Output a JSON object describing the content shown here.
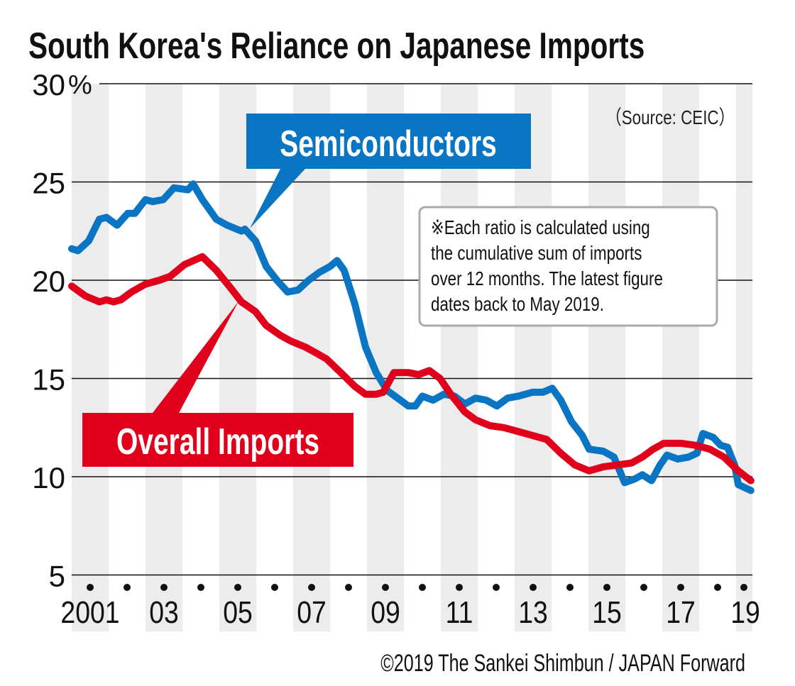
{
  "chart_data": {
    "type": "line",
    "title": "South Korea's Reliance on Japanese Imports",
    "source": "（Source: CEIC）",
    "note_lines": [
      "※Each ratio is calculated using",
      "the cumulative sum of imports",
      "over 12 months. The latest figure",
      "dates back to May 2019."
    ],
    "copyright": "©2019 The Sankei Shimbun / JAPAN Forward",
    "ylabel_unit": "%",
    "ylim": [
      5,
      30
    ],
    "yticks": [
      5,
      10,
      15,
      20,
      25,
      30
    ],
    "ytick_labels": [
      "5",
      "10",
      "15",
      "20",
      "25",
      "30"
    ],
    "xlim": [
      2001,
      2019.42
    ],
    "xtick_labels": [
      {
        "year": 2001,
        "label": "2001"
      },
      {
        "year": 2003,
        "label": "03"
      },
      {
        "year": 2005,
        "label": "05"
      },
      {
        "year": 2007,
        "label": "07"
      },
      {
        "year": 2009,
        "label": "09"
      },
      {
        "year": 2011,
        "label": "11"
      },
      {
        "year": 2013,
        "label": "13"
      },
      {
        "year": 2015,
        "label": "15"
      },
      {
        "year": 2017,
        "label": "17"
      },
      {
        "year": 2019,
        "label": "19"
      }
    ],
    "grid": true,
    "series": [
      {
        "name": "Semiconductors",
        "color": "#0a75c2",
        "x": [
          2001.0,
          2001.17,
          2001.46,
          2001.75,
          2001.94,
          2002.23,
          2002.52,
          2002.71,
          2003.0,
          2003.19,
          2003.48,
          2003.77,
          2004.15,
          2004.29,
          2004.54,
          2004.92,
          2005.21,
          2005.6,
          2005.69,
          2005.98,
          2006.27,
          2006.56,
          2006.85,
          2007.13,
          2007.42,
          2007.71,
          2008.0,
          2008.19,
          2008.38,
          2008.67,
          2008.96,
          2009.25,
          2009.54,
          2009.83,
          2010.12,
          2010.31,
          2010.5,
          2010.79,
          2011.08,
          2011.37,
          2011.65,
          2011.94,
          2012.23,
          2012.52,
          2012.81,
          2013.1,
          2013.48,
          2013.77,
          2014.02,
          2014.25,
          2014.54,
          2014.83,
          2015.02,
          2015.4,
          2015.69,
          2015.98,
          2016.27,
          2016.46,
          2016.71,
          2016.94,
          2017.13,
          2017.42,
          2017.71,
          2017.94,
          2018.1,
          2018.38,
          2018.58,
          2018.77,
          2018.96,
          2019.06,
          2019.4
        ],
        "y": [
          21.6,
          21.5,
          22.0,
          23.1,
          23.2,
          22.8,
          23.4,
          23.4,
          24.1,
          24.0,
          24.1,
          24.7,
          24.6,
          24.9,
          24.1,
          23.1,
          22.8,
          22.5,
          22.6,
          22.0,
          20.7,
          20.0,
          19.4,
          19.5,
          20.0,
          20.4,
          20.7,
          21.0,
          20.5,
          18.8,
          16.6,
          15.3,
          14.4,
          14.0,
          13.6,
          13.6,
          14.1,
          13.9,
          14.2,
          14.1,
          13.7,
          14.0,
          13.9,
          13.6,
          14.0,
          14.1,
          14.3,
          14.3,
          14.5,
          13.9,
          12.8,
          12.1,
          11.4,
          11.3,
          11.0,
          9.7,
          9.9,
          10.1,
          9.8,
          10.6,
          11.1,
          10.9,
          11.0,
          11.2,
          12.2,
          12.0,
          11.6,
          11.5,
          10.6,
          9.6,
          9.3
        ]
      },
      {
        "name": "Overall Imports",
        "color": "#e0001b",
        "x": [
          2001.0,
          2001.37,
          2001.75,
          2001.94,
          2002.13,
          2002.33,
          2002.62,
          2003.0,
          2003.38,
          2003.67,
          2004.06,
          2004.54,
          2004.92,
          2005.31,
          2005.6,
          2005.98,
          2006.27,
          2006.65,
          2006.94,
          2007.33,
          2007.62,
          2007.9,
          2008.29,
          2008.67,
          2008.96,
          2009.25,
          2009.44,
          2009.73,
          2010.12,
          2010.4,
          2010.69,
          2010.98,
          2011.27,
          2011.65,
          2011.94,
          2012.33,
          2012.71,
          2013.1,
          2013.48,
          2013.87,
          2014.25,
          2014.63,
          2015.02,
          2015.4,
          2015.79,
          2016.17,
          2016.46,
          2016.75,
          2017.04,
          2017.52,
          2017.9,
          2018.29,
          2018.67,
          2019.06,
          2019.4
        ],
        "y": [
          19.7,
          19.2,
          18.9,
          19.0,
          18.9,
          19.0,
          19.4,
          19.8,
          20.0,
          20.2,
          20.8,
          21.2,
          20.5,
          19.6,
          18.9,
          18.4,
          17.7,
          17.2,
          16.9,
          16.6,
          16.3,
          16.0,
          15.3,
          14.6,
          14.2,
          14.2,
          14.3,
          15.3,
          15.3,
          15.2,
          15.4,
          15.0,
          14.2,
          13.3,
          12.9,
          12.6,
          12.5,
          12.3,
          12.1,
          11.9,
          11.2,
          10.6,
          10.3,
          10.5,
          10.6,
          10.7,
          11.0,
          11.4,
          11.7,
          11.7,
          11.6,
          11.4,
          11.0,
          10.3,
          9.8
        ]
      }
    ]
  }
}
